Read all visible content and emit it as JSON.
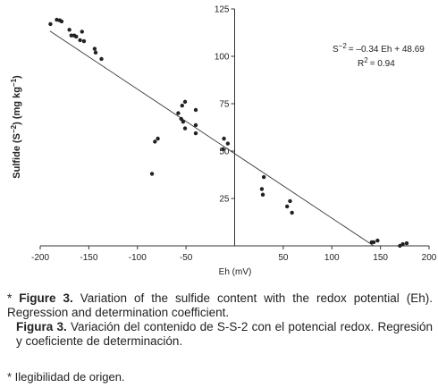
{
  "chart_data": {
    "type": "scatter",
    "x_label": "Eh (mV)",
    "y_label": {
      "pre": "Sulfide (S",
      "sup1": "−2",
      "mid": ") (mg kg",
      "sup2": "−1",
      "post": ")"
    },
    "annotation": {
      "eq_lhs": "S",
      "eq_sup": "−2",
      "eq_rhs": "= –0.34 Eh + 48.69",
      "r_lhs": "R",
      "r_sup": "2",
      "r_rhs": "= 0.94"
    },
    "x": [
      -189.5,
      -183,
      -180,
      -178,
      -170,
      -168,
      -165,
      -163,
      -157,
      -159,
      -155,
      -144,
      -143,
      -137,
      -58,
      -54,
      -51,
      -55,
      -53,
      -51,
      -40,
      -40,
      -40,
      -79,
      -82,
      -85,
      -11,
      -7,
      -12,
      30,
      28,
      29,
      57,
      54,
      59,
      141,
      143,
      147,
      170,
      173,
      177
    ],
    "values": [
      117,
      119.3,
      119,
      118.4,
      114,
      111,
      111,
      110.4,
      113,
      108.5,
      108,
      104,
      102,
      98.6,
      70,
      74,
      76,
      67,
      65.5,
      62,
      71.7,
      63.7,
      59.4,
      56.6,
      55,
      38,
      56.6,
      54,
      51,
      36.3,
      30,
      27,
      23.6,
      20.8,
      17.5,
      1.9,
      1.9,
      2.8,
      0,
      0.9,
      1.4
    ],
    "color": "#222222",
    "trendline": {
      "x": [
        -190,
        143
      ],
      "y": [
        113.3,
        0
      ]
    },
    "xlim": [
      -200,
      200
    ],
    "xticks": [
      -200,
      -150,
      -100,
      -50,
      50,
      100,
      150,
      200
    ],
    "ylim": [
      0,
      125
    ],
    "yticks": [
      25,
      50,
      75,
      100,
      125
    ]
  },
  "caption": [
    {
      "marker": "*",
      "bold": "Figure 3.",
      "text": "Variation of the sulfide content with the redox potential (Eh). Regression and determination coefficient."
    },
    {
      "bold": "Figura 3.",
      "text": "Variación del contenido de S-S-2 con el potencial redox. Regresión y coeficiente de determinación."
    }
  ],
  "footnote": "* Ilegibilidad de origen."
}
